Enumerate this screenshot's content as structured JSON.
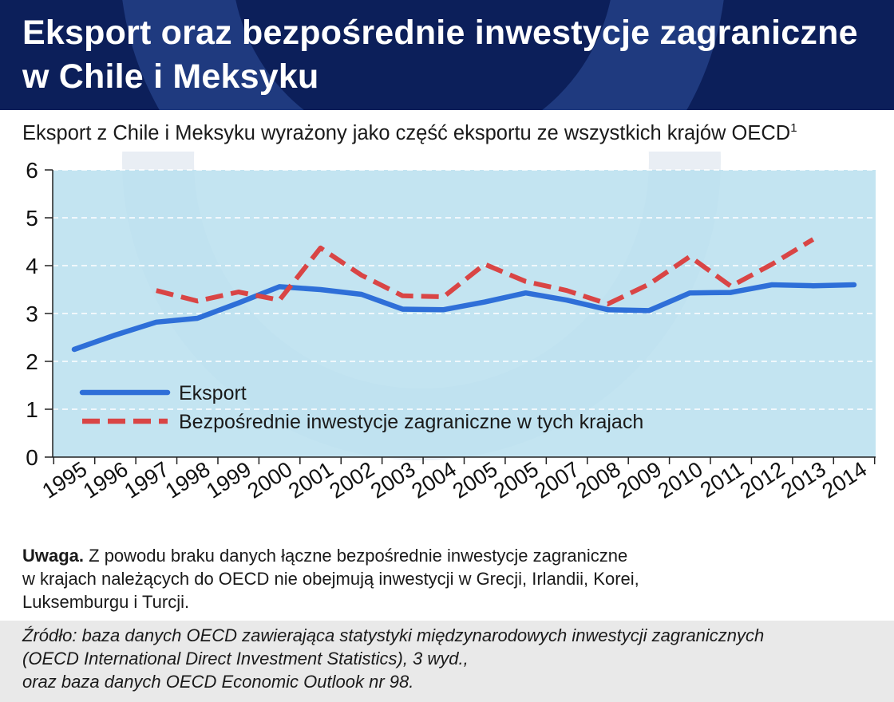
{
  "header": {
    "title_line1": "Eksport oraz bezpośrednie inwestycje zagraniczne",
    "title_line2": "w Chile i Meksyku",
    "background_color": "#0c1f5a"
  },
  "subtitle": {
    "text": "Eksport z Chile i Meksyku wyrażony jako część eksportu ze wszystkich krajów OECD",
    "footnote_mark": "1"
  },
  "chart_data": {
    "type": "line",
    "title": "Eksport z Chile i Meksyku wyrażony jako część eksportu ze wszystkich krajów OECD",
    "categories": [
      "1995",
      "1996",
      "1997",
      "1998",
      "1999",
      "2000",
      "2001",
      "2002",
      "2003",
      "2004",
      "2005",
      "2005",
      "2007",
      "2008",
      "2009",
      "2010",
      "2011",
      "2012",
      "2013",
      "2014"
    ],
    "series": [
      {
        "name": "Eksport",
        "color": "#2e6fd8",
        "style": "solid",
        "values": [
          2.25,
          2.55,
          2.82,
          2.9,
          3.22,
          3.56,
          3.5,
          3.4,
          3.09,
          3.08,
          3.24,
          3.43,
          3.28,
          3.08,
          3.06,
          3.43,
          3.44,
          3.6,
          3.58,
          3.6
        ]
      },
      {
        "name": "Bezpośrednie inwestycje zagraniczne w tych krajach",
        "color": "#d94545",
        "style": "dashed",
        "values": [
          null,
          null,
          3.48,
          3.26,
          3.45,
          3.28,
          4.37,
          3.8,
          3.37,
          3.35,
          4.03,
          3.67,
          3.48,
          3.2,
          3.61,
          4.19,
          3.57,
          4.03,
          4.55,
          null
        ]
      }
    ],
    "yticks": [
      0,
      1,
      2,
      3,
      4,
      5,
      6
    ],
    "ylim": [
      0,
      6
    ],
    "xlabel": "",
    "ylabel": "",
    "grid": true,
    "legend_position": "bottom-left",
    "plot_background": "#b9dfee"
  },
  "note": {
    "label": "Uwaga.",
    "line1": " Z powodu braku danych łączne bezpośrednie inwestycje zagraniczne",
    "line2": "w krajach należących do OECD nie obejmują inwestycji w Grecji, Irlandii, Korei,",
    "line3": "Luksemburgu i Turcji."
  },
  "source": {
    "line1": "Źródło: baza danych OECD zawierająca statystyki międzynarodowych inwestycji zagranicznych",
    "line2": "(OECD International Direct Investment Statistics), 3 wyd.,",
    "line3": "oraz baza danych OECD Economic Outlook nr 98."
  }
}
